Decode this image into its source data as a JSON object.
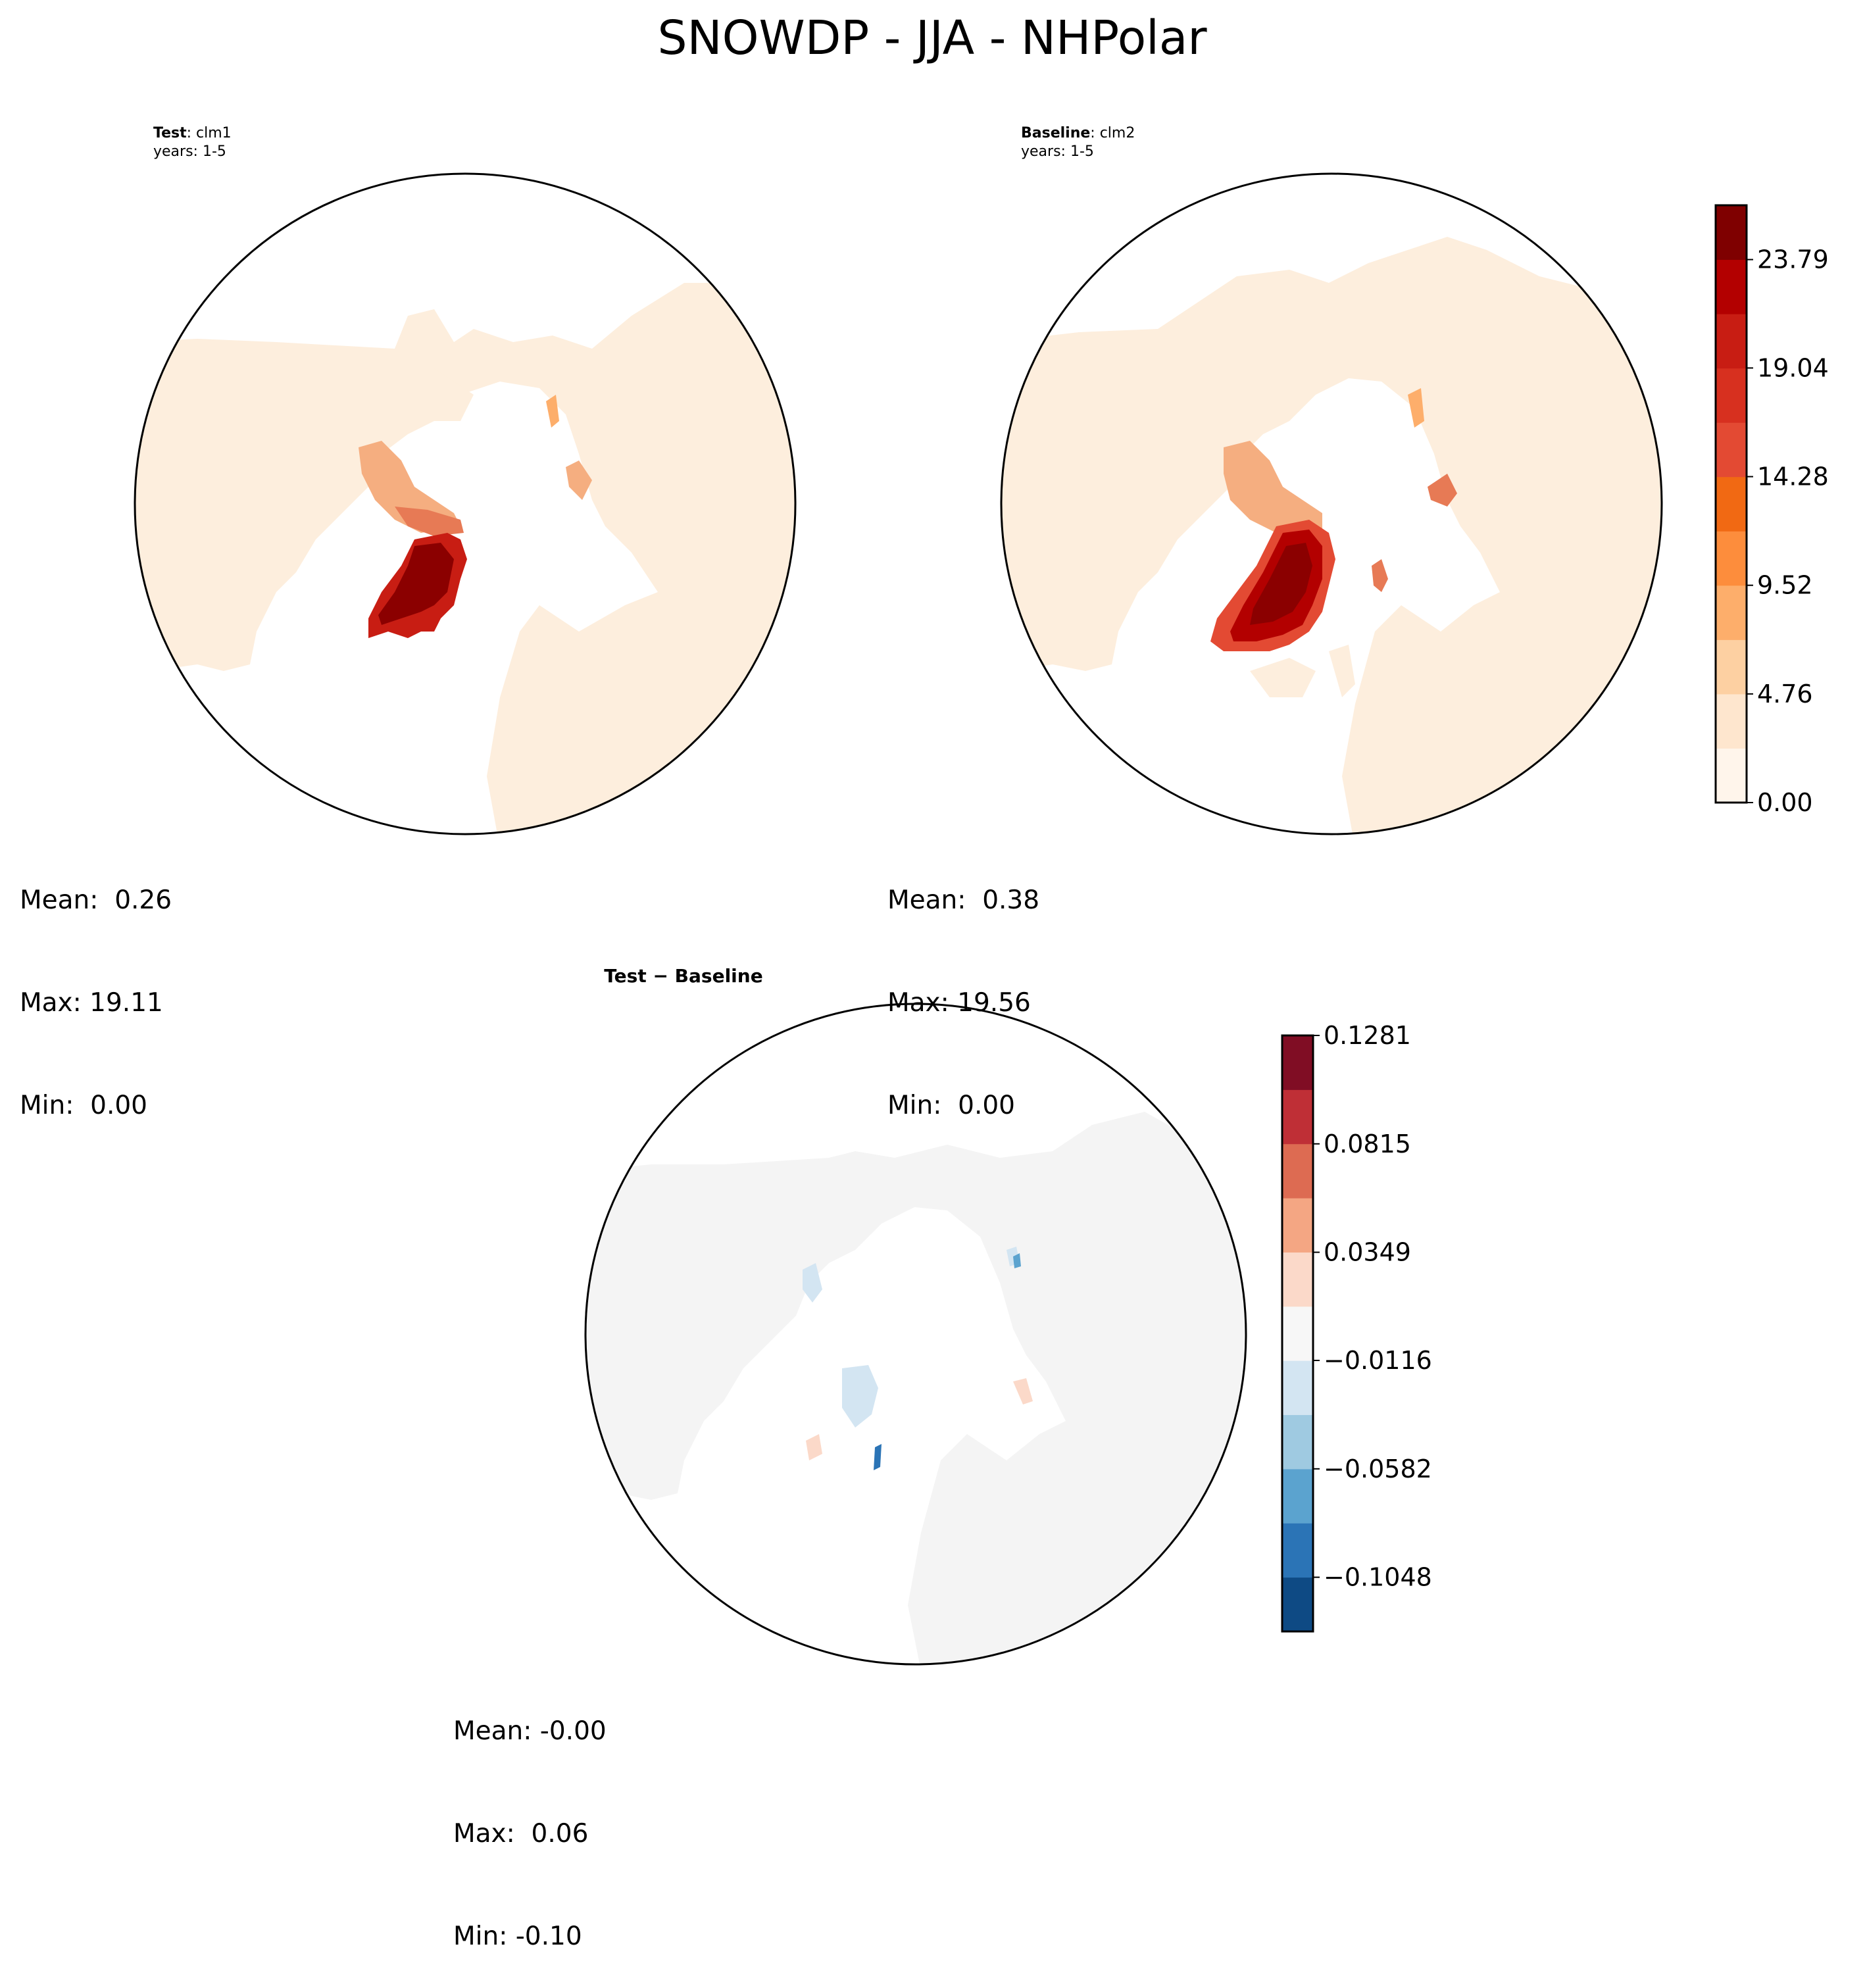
{
  "title": "SNOWDP - JJA - NHPolar",
  "panels": [
    {
      "id": "test",
      "label_bold": "Test",
      "label_text": ": clm1",
      "years": "years: 1-5",
      "stats": {
        "mean": "Mean:  0.26",
        "max": "Max: 19.11",
        "min": "Min:  0.00"
      }
    },
    {
      "id": "baseline",
      "label_bold": "Baseline",
      "label_text": ": clm2",
      "years": "years: 1-5",
      "stats": {
        "mean": "Mean:  0.38",
        "max": "Max: 19.56",
        "min": "Min:  0.00"
      }
    },
    {
      "id": "diff",
      "label_bold": "Test − Baseline",
      "label_text": "",
      "years": "",
      "stats": {
        "mean": "Mean: -0.00",
        "max": "Max:  0.06",
        "min": "Min: -0.10"
      }
    }
  ],
  "colorbars": {
    "snow": {
      "labels": [
        "0.00",
        "4.76",
        "9.52",
        "14.28",
        "19.04",
        "23.79"
      ],
      "levels": [
        0.0,
        2.38,
        4.76,
        7.14,
        9.52,
        11.9,
        14.28,
        16.66,
        19.04,
        21.42,
        23.79,
        26.17
      ],
      "colors": [
        "#fff5eb",
        "#fee6ce",
        "#fdd0a2",
        "#fdae6b",
        "#fd8d3c",
        "#f16913",
        "#e34a33",
        "#d7301f",
        "#c81d13",
        "#b30000",
        "#7f0000"
      ]
    },
    "diff": {
      "labels": [
        "−0.1048",
        "−0.0582",
        "−0.0116",
        "0.0349",
        "0.0815",
        "0.1281"
      ],
      "levels": [
        -0.1281,
        -0.1048,
        -0.0815,
        -0.0582,
        -0.0349,
        -0.0116,
        0.0116,
        0.0349,
        0.0582,
        0.0815,
        0.1048,
        0.1281
      ],
      "colors": [
        "#0e4a84",
        "#2b74b6",
        "#5ba3cf",
        "#9fcae1",
        "#d3e5f2",
        "#f7f7f7",
        "#fbd9c9",
        "#f4a683",
        "#dd6b52",
        "#bf2f36",
        "#800d24"
      ]
    }
  },
  "chart_data": {
    "type": "polar-contour-map",
    "title": "SNOWDP - JJA - NHPolar",
    "variable": "SNOWDP",
    "season": "JJA",
    "region": "NHPolar",
    "series": [
      {
        "name": "Test: clm1",
        "mean": 0.26,
        "max": 19.11,
        "min": 0.0
      },
      {
        "name": "Baseline: clm2",
        "mean": 0.38,
        "max": 19.56,
        "min": 0.0
      },
      {
        "name": "Test − Baseline",
        "mean": -0.0,
        "max": 0.06,
        "min": -0.1
      }
    ]
  }
}
